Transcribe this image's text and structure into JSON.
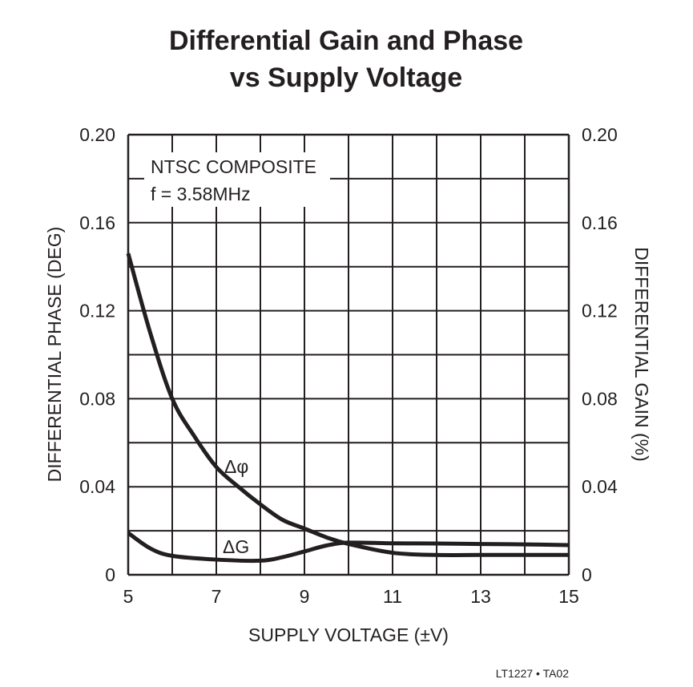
{
  "chart_data": {
    "type": "line",
    "title": [
      "Differential Gain and Phase",
      "vs Supply Voltage"
    ],
    "xlabel": "SUPPLY VOLTAGE (±V)",
    "ylabel": "DIFFERENTIAL PHASE (DEG)",
    "y2label": "DIFFERENTIAL GAIN (%)",
    "xlim": [
      5,
      15
    ],
    "ylim": [
      0,
      0.2
    ],
    "y2lim": [
      0,
      0.2
    ],
    "grid": true,
    "xticks": [
      "5",
      "7",
      "9",
      "11",
      "13",
      "15"
    ],
    "yticks": [
      "0",
      "0.04",
      "0.08",
      "0.12",
      "0.16",
      "0.20"
    ],
    "y2ticks": [
      "0",
      "0.04",
      "0.08",
      "0.12",
      "0.16",
      "0.20"
    ],
    "annotation": [
      "NTSC COMPOSITE",
      "f = 3.58MHz"
    ],
    "series": [
      {
        "name": "Δφ",
        "axis": "left",
        "x": [
          5,
          5.5,
          6,
          6.5,
          7,
          7.5,
          8,
          8.5,
          9,
          9.5,
          10,
          11,
          12,
          13,
          14,
          15
        ],
        "y": [
          0.146,
          0.11,
          0.08,
          0.063,
          0.049,
          0.04,
          0.032,
          0.025,
          0.021,
          0.017,
          0.014,
          0.01,
          0.009,
          0.009,
          0.009,
          0.009
        ]
      },
      {
        "name": "ΔG",
        "axis": "right",
        "x": [
          5,
          5.5,
          6,
          7,
          8,
          8.5,
          9,
          9.5,
          10,
          11,
          12,
          13,
          14,
          15
        ],
        "y": [
          0.019,
          0.012,
          0.0086,
          0.0069,
          0.0064,
          0.008,
          0.0106,
          0.0133,
          0.0146,
          0.0143,
          0.0142,
          0.014,
          0.0138,
          0.0135
        ]
      }
    ]
  },
  "footer": "LT1227 • TA02"
}
